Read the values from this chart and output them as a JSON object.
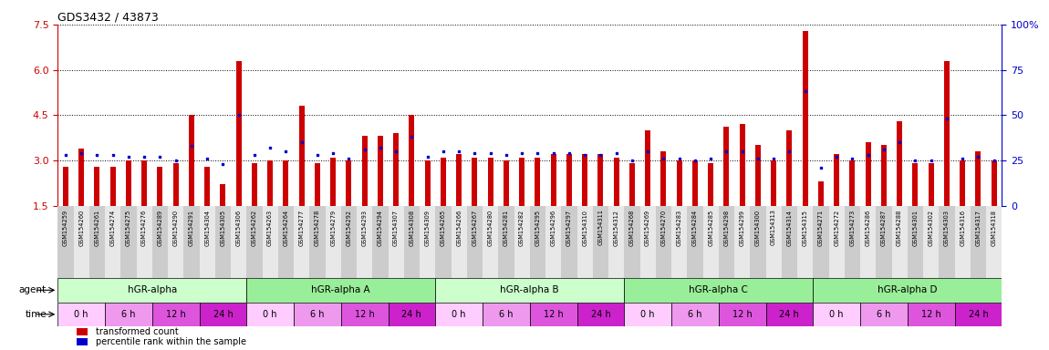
{
  "title": "GDS3432 / 43873",
  "ylim_left": [
    1.5,
    7.5
  ],
  "ylim_right": [
    0,
    100
  ],
  "yticks_left": [
    1.5,
    3.0,
    4.5,
    6.0,
    7.5
  ],
  "yticks_right": [
    0,
    25,
    50,
    75,
    100
  ],
  "ytick_labels_right": [
    "0",
    "25",
    "50",
    "75",
    "100%"
  ],
  "left_axis_color": "#cc0000",
  "right_axis_color": "#0000cc",
  "bar_color": "#cc0000",
  "dot_color": "#0000cc",
  "samples": [
    "GSM154259",
    "GSM154260",
    "GSM154261",
    "GSM154274",
    "GSM154275",
    "GSM154276",
    "GSM154289",
    "GSM154290",
    "GSM154291",
    "GSM154304",
    "GSM154305",
    "GSM154306",
    "GSM154262",
    "GSM154263",
    "GSM154264",
    "GSM154277",
    "GSM154278",
    "GSM154279",
    "GSM154292",
    "GSM154293",
    "GSM154294",
    "GSM154307",
    "GSM154308",
    "GSM154309",
    "GSM154265",
    "GSM154266",
    "GSM154267",
    "GSM154280",
    "GSM154281",
    "GSM154282",
    "GSM154295",
    "GSM154296",
    "GSM154297",
    "GSM154310",
    "GSM154311",
    "GSM154312",
    "GSM154268",
    "GSM154269",
    "GSM154270",
    "GSM154283",
    "GSM154284",
    "GSM154285",
    "GSM154298",
    "GSM154299",
    "GSM154300",
    "GSM154313",
    "GSM154314",
    "GSM154315",
    "GSM154271",
    "GSM154272",
    "GSM154273",
    "GSM154286",
    "GSM154287",
    "GSM154288",
    "GSM154301",
    "GSM154302",
    "GSM154303",
    "GSM154316",
    "GSM154317",
    "GSM154318"
  ],
  "red_values": [
    2.8,
    3.4,
    2.8,
    2.8,
    3.0,
    3.0,
    2.8,
    2.9,
    4.5,
    2.8,
    2.2,
    6.3,
    2.9,
    3.0,
    3.0,
    4.8,
    2.9,
    3.1,
    3.0,
    3.8,
    3.8,
    3.9,
    4.5,
    3.0,
    3.1,
    3.2,
    3.1,
    3.1,
    3.0,
    3.1,
    3.1,
    3.2,
    3.2,
    3.2,
    3.2,
    3.1,
    2.9,
    4.0,
    3.3,
    3.0,
    3.0,
    2.9,
    4.1,
    4.2,
    3.5,
    3.0,
    4.0,
    7.3,
    2.3,
    3.2,
    3.0,
    3.6,
    3.5,
    4.3,
    2.9,
    2.9,
    6.3,
    3.0,
    3.3,
    3.0
  ],
  "blue_values": [
    28,
    29,
    28,
    28,
    27,
    27,
    27,
    25,
    33,
    26,
    23,
    50,
    28,
    32,
    30,
    35,
    28,
    29,
    26,
    31,
    32,
    30,
    38,
    27,
    30,
    30,
    29,
    29,
    28,
    29,
    29,
    29,
    29,
    28,
    28,
    29,
    25,
    30,
    26,
    26,
    25,
    26,
    30,
    30,
    26,
    26,
    30,
    63,
    21,
    27,
    26,
    28,
    31,
    35,
    25,
    25,
    48,
    26,
    27,
    25
  ],
  "groups": [
    {
      "label": "hGR-alpha",
      "start": 0,
      "end": 12
    },
    {
      "label": "hGR-alpha A",
      "start": 12,
      "end": 24
    },
    {
      "label": "hGR-alpha B",
      "start": 24,
      "end": 36
    },
    {
      "label": "hGR-alpha C",
      "start": 36,
      "end": 48
    },
    {
      "label": "hGR-alpha D",
      "start": 48,
      "end": 60
    }
  ],
  "agent_colors": [
    "#ccffcc",
    "#99ee99",
    "#ccffcc",
    "#99ee99",
    "#99ee99"
  ],
  "time_colors": [
    "#ffccff",
    "#ee99ee",
    "#dd55dd",
    "#cc22cc"
  ],
  "time_labels": [
    "0 h",
    "6 h",
    "12 h",
    "24 h"
  ],
  "bg_color": "#ffffff",
  "label_bg_color": "#dddddd",
  "legend_red_label": "transformed count",
  "legend_blue_label": "percentile rank within the sample"
}
